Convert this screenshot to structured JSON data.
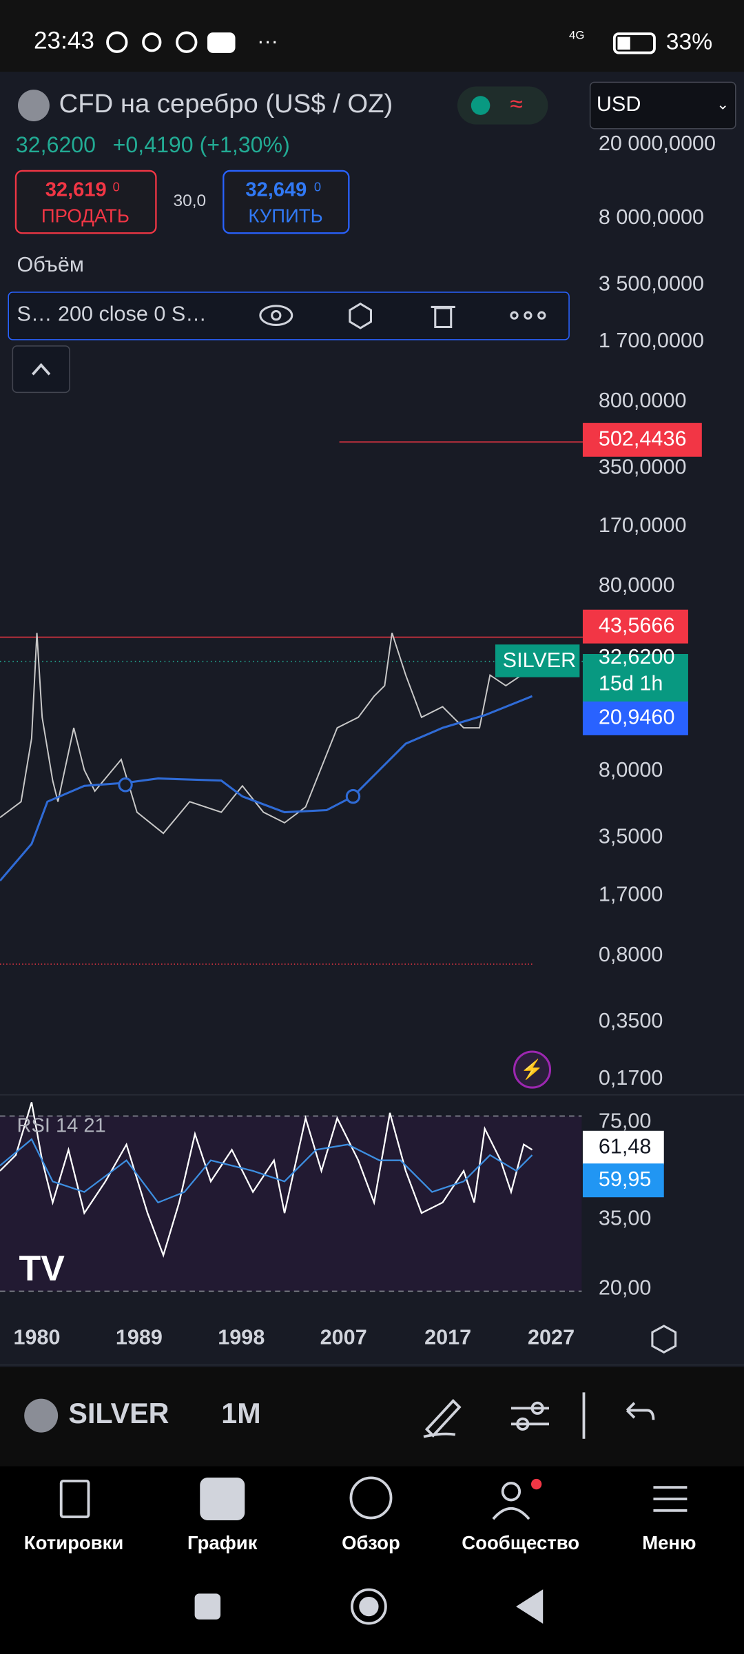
{
  "status_bar": {
    "time": "23:43",
    "network": "4G",
    "battery": "33%"
  },
  "header": {
    "title": "CFD на серебро (US$ / OZ)",
    "currency": "USD",
    "price": "32,6200",
    "change": "+0,4190 (+1,30%)"
  },
  "trade": {
    "sell": {
      "price": "32,619",
      "pip": "0",
      "label": "ПРОДАТЬ"
    },
    "spread": "30,0",
    "buy": {
      "price": "32,649",
      "pip": "0",
      "label": "КУПИТЬ"
    }
  },
  "volume_label": "Объём",
  "indicator": {
    "label": "S… 200 close 0 S…"
  },
  "price_axis": [
    "20 000,0000",
    "8 000,0000",
    "3 500,0000",
    "1 700,0000",
    "800,0000",
    "350,0000",
    "170,0000",
    "80,0000",
    "8,0000",
    "3,5000",
    "1,7000",
    "0,8000",
    "0,3500",
    "0,1700"
  ],
  "price_tags": [
    "502,4436",
    "43,5666",
    "32,6200",
    "20,9460"
  ],
  "symbol_tag": "SILVER",
  "countdown": "15d 1h",
  "rsi": {
    "label": "RSI 14 21",
    "axis": [
      "75,00",
      "35,00",
      "20,00"
    ],
    "tags": [
      "61,48",
      "59,95"
    ]
  },
  "time_axis": [
    "1980",
    "1989",
    "1998",
    "2007",
    "2017",
    "2027"
  ],
  "toolbar": {
    "symbol": "SILVER",
    "interval": "1M"
  },
  "nav": [
    "Котировки",
    "График",
    "Обзор",
    "Сообщество",
    "Меню"
  ]
}
